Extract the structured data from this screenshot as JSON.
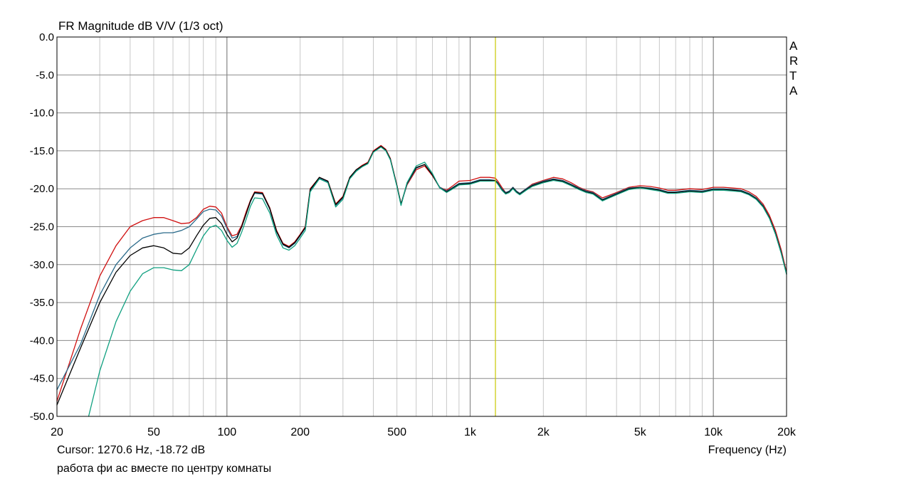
{
  "chart_data": {
    "type": "line",
    "title": "FR Magnitude dB V/V (1/3 oct)",
    "xlabel": "Frequency (Hz)",
    "ylabel": "",
    "x_scale": "log",
    "xlim": [
      20,
      20000
    ],
    "ylim": [
      -50,
      0
    ],
    "x_ticks": [
      20,
      50,
      100,
      200,
      500,
      1000,
      2000,
      5000,
      10000,
      20000
    ],
    "x_tick_labels": [
      "20",
      "50",
      "100",
      "200",
      "500",
      "1k",
      "2k",
      "5k",
      "10k",
      "20k"
    ],
    "y_ticks": [
      0,
      -5,
      -10,
      -15,
      -20,
      -25,
      -30,
      -35,
      -40,
      -45,
      -50
    ],
    "y_tick_labels": [
      "0.0",
      "-5.0",
      "-10.0",
      "-15.0",
      "-20.0",
      "-25.0",
      "-30.0",
      "-35.0",
      "-40.0",
      "-45.0",
      "-50.0"
    ],
    "grid": true,
    "cursor": {
      "frequency": 1270.6,
      "value": -18.72,
      "color": "#c8c800"
    },
    "cursor_label": "Cursor: 1270.6 Hz, -18.72 dB",
    "caption": "работа фи ас вместе по центру комнаты",
    "brand": "ARTA",
    "series": [
      {
        "color": "#d01010",
        "x": [
          20,
          25,
          30,
          35,
          40,
          45,
          50,
          55,
          60,
          65,
          70,
          75,
          80,
          85,
          90,
          95,
          100,
          105,
          110,
          115,
          120,
          125,
          130,
          140,
          150,
          160,
          170,
          180,
          190,
          200,
          210,
          220,
          240,
          260,
          280,
          300,
          320,
          340,
          360,
          380,
          400,
          430,
          450,
          470,
          500,
          520,
          550,
          600,
          650,
          700,
          750,
          800,
          850,
          900,
          1000,
          1100,
          1200,
          1270,
          1300,
          1350,
          1400,
          1450,
          1500,
          1550,
          1600,
          1700,
          1800,
          2000,
          2200,
          2400,
          2600,
          2800,
          3000,
          3200,
          3500,
          4000,
          4500,
          5000,
          5500,
          6000,
          6500,
          7000,
          8000,
          9000,
          10000,
          11000,
          12000,
          13000,
          14000,
          15000,
          16000,
          17000,
          18000,
          19000,
          20000
        ],
        "y": [
          -48.0,
          -38.5,
          -31.5,
          -27.5,
          -25.0,
          -24.2,
          -23.8,
          -23.8,
          -24.2,
          -24.6,
          -24.5,
          -23.8,
          -22.7,
          -22.3,
          -22.4,
          -23.2,
          -25.0,
          -26.2,
          -26.0,
          -24.8,
          -23.0,
          -21.5,
          -20.4,
          -20.5,
          -22.5,
          -25.5,
          -27.2,
          -27.6,
          -27.0,
          -26.0,
          -25.0,
          -20.0,
          -18.5,
          -19.0,
          -22.0,
          -21.0,
          -18.5,
          -17.5,
          -16.9,
          -16.5,
          -15.0,
          -14.3,
          -14.8,
          -16.0,
          -19.5,
          -22.0,
          -19.5,
          -17.5,
          -17.0,
          -18.3,
          -19.8,
          -20.2,
          -19.6,
          -19.0,
          -18.9,
          -18.5,
          -18.5,
          -18.6,
          -19.0,
          -19.8,
          -20.5,
          -20.3,
          -19.8,
          -20.3,
          -20.6,
          -20.0,
          -19.4,
          -18.9,
          -18.5,
          -18.7,
          -19.2,
          -19.8,
          -20.2,
          -20.4,
          -21.2,
          -20.5,
          -19.8,
          -19.6,
          -19.7,
          -19.9,
          -20.2,
          -20.2,
          -20.0,
          -20.1,
          -19.8,
          -19.8,
          -19.9,
          -20.0,
          -20.4,
          -21.0,
          -22.0,
          -23.5,
          -25.5,
          -28.0,
          -31.0
        ]
      },
      {
        "color": "#2a6a8a",
        "x": [
          20,
          25,
          30,
          35,
          40,
          45,
          50,
          55,
          60,
          65,
          70,
          75,
          80,
          85,
          90,
          95,
          100,
          105,
          110,
          115,
          120,
          125,
          130,
          140,
          150,
          160,
          170,
          180,
          190,
          200,
          210,
          220,
          240,
          260,
          280,
          300,
          320,
          340,
          360,
          380,
          400,
          430,
          450,
          470,
          500,
          520,
          550,
          600,
          650,
          700,
          750,
          800,
          850,
          900,
          1000,
          1100,
          1200,
          1270,
          1300,
          1350,
          1400,
          1450,
          1500,
          1550,
          1600,
          1700,
          1800,
          2000,
          2200,
          2400,
          2600,
          2800,
          3000,
          3200,
          3500,
          4000,
          4500,
          5000,
          5500,
          6000,
          6500,
          7000,
          8000,
          9000,
          10000,
          11000,
          12000,
          13000,
          14000,
          15000,
          16000,
          17000,
          18000,
          19000,
          20000
        ],
        "y": [
          -46.5,
          -40.5,
          -34.0,
          -30.0,
          -27.8,
          -26.5,
          -26.0,
          -25.8,
          -25.8,
          -25.5,
          -25.0,
          -24.0,
          -23.0,
          -22.7,
          -22.8,
          -23.6,
          -25.2,
          -26.5,
          -26.3,
          -25.0,
          -23.3,
          -21.7,
          -20.6,
          -20.7,
          -22.7,
          -25.7,
          -27.4,
          -27.8,
          -27.2,
          -26.2,
          -25.2,
          -20.2,
          -18.6,
          -19.1,
          -22.2,
          -21.2,
          -18.6,
          -17.6,
          -17.0,
          -16.6,
          -15.1,
          -14.4,
          -14.9,
          -16.1,
          -19.6,
          -22.1,
          -19.4,
          -17.3,
          -16.8,
          -18.2,
          -19.8,
          -20.3,
          -19.8,
          -19.3,
          -19.2,
          -18.8,
          -18.8,
          -18.9,
          -19.2,
          -20.0,
          -20.5,
          -20.3,
          -19.8,
          -20.3,
          -20.6,
          -20.0,
          -19.5,
          -19.0,
          -18.7,
          -18.9,
          -19.4,
          -19.9,
          -20.3,
          -20.5,
          -21.4,
          -20.6,
          -19.9,
          -19.8,
          -19.9,
          -20.1,
          -20.4,
          -20.4,
          -20.2,
          -20.3,
          -20.0,
          -20.0,
          -20.1,
          -20.2,
          -20.6,
          -21.2,
          -22.2,
          -23.8,
          -25.8,
          -28.3,
          -31.2
        ]
      },
      {
        "color": "#000000",
        "x": [
          20,
          25,
          30,
          35,
          40,
          45,
          50,
          55,
          60,
          65,
          70,
          75,
          80,
          85,
          90,
          95,
          100,
          105,
          110,
          115,
          120,
          125,
          130,
          140,
          150,
          160,
          170,
          180,
          190,
          200,
          210,
          220,
          240,
          260,
          280,
          300,
          320,
          340,
          360,
          380,
          400,
          430,
          450,
          470,
          500,
          520,
          550,
          600,
          650,
          700,
          750,
          800,
          850,
          900,
          1000,
          1100,
          1200,
          1270,
          1300,
          1350,
          1400,
          1450,
          1500,
          1550,
          1600,
          1700,
          1800,
          2000,
          2200,
          2400,
          2600,
          2800,
          3000,
          3200,
          3500,
          4000,
          4500,
          5000,
          5500,
          6000,
          6500,
          7000,
          8000,
          9000,
          10000,
          11000,
          12000,
          13000,
          14000,
          15000,
          16000,
          17000,
          18000,
          19000,
          20000
        ],
        "y": [
          -48.5,
          -41.0,
          -35.0,
          -31.0,
          -28.8,
          -27.8,
          -27.5,
          -27.8,
          -28.5,
          -28.6,
          -27.8,
          -26.2,
          -24.8,
          -23.9,
          -23.8,
          -24.6,
          -26.0,
          -27.0,
          -26.5,
          -25.0,
          -23.3,
          -21.6,
          -20.5,
          -20.6,
          -22.6,
          -25.6,
          -27.3,
          -27.7,
          -27.1,
          -26.1,
          -25.1,
          -20.1,
          -18.5,
          -19.0,
          -22.1,
          -21.1,
          -18.5,
          -17.5,
          -17.0,
          -16.6,
          -15.1,
          -14.4,
          -14.9,
          -16.1,
          -19.6,
          -22.0,
          -19.3,
          -17.2,
          -16.8,
          -18.2,
          -19.9,
          -20.4,
          -19.9,
          -19.4,
          -19.3,
          -18.9,
          -18.9,
          -18.9,
          -19.3,
          -20.1,
          -20.6,
          -20.4,
          -19.9,
          -20.4,
          -20.7,
          -20.1,
          -19.6,
          -19.1,
          -18.8,
          -19.0,
          -19.5,
          -20.0,
          -20.4,
          -20.6,
          -21.5,
          -20.7,
          -20.0,
          -19.8,
          -20.0,
          -20.2,
          -20.5,
          -20.5,
          -20.3,
          -20.4,
          -20.1,
          -20.1,
          -20.2,
          -20.3,
          -20.7,
          -21.3,
          -22.3,
          -23.8,
          -25.9,
          -28.4,
          -31.2
        ]
      },
      {
        "color": "#10a080",
        "x": [
          27,
          30,
          35,
          40,
          45,
          50,
          55,
          60,
          65,
          70,
          75,
          80,
          85,
          90,
          95,
          100,
          105,
          110,
          115,
          120,
          125,
          130,
          140,
          150,
          160,
          170,
          180,
          190,
          200,
          210,
          220,
          240,
          260,
          280,
          300,
          320,
          340,
          360,
          380,
          400,
          430,
          450,
          470,
          500,
          520,
          550,
          600,
          650,
          700,
          750,
          800,
          850,
          900,
          1000,
          1100,
          1200,
          1270,
          1300,
          1350,
          1400,
          1450,
          1500,
          1550,
          1600,
          1700,
          1800,
          2000,
          2200,
          2400,
          2600,
          2800,
          3000,
          3200,
          3500,
          4000,
          4500,
          5000,
          5500,
          6000,
          6500,
          7000,
          8000,
          9000,
          10000,
          11000,
          12000,
          13000,
          14000,
          15000,
          16000,
          17000,
          18000,
          19000,
          20000
        ],
        "y": [
          -50.0,
          -44.0,
          -37.5,
          -33.5,
          -31.2,
          -30.4,
          -30.4,
          -30.7,
          -30.8,
          -30.0,
          -28.0,
          -26.2,
          -25.1,
          -24.8,
          -25.5,
          -26.8,
          -27.7,
          -27.2,
          -25.7,
          -24.0,
          -22.3,
          -21.2,
          -21.3,
          -23.2,
          -26.1,
          -27.8,
          -28.1,
          -27.5,
          -26.5,
          -25.5,
          -20.4,
          -18.7,
          -19.2,
          -22.4,
          -21.4,
          -18.7,
          -17.7,
          -17.1,
          -16.7,
          -15.2,
          -14.5,
          -15.0,
          -16.2,
          -19.7,
          -22.2,
          -19.2,
          -17.0,
          -16.5,
          -18.0,
          -19.9,
          -20.5,
          -20.0,
          -19.5,
          -19.4,
          -19.0,
          -19.0,
          -19.0,
          -19.4,
          -20.2,
          -20.7,
          -20.5,
          -20.0,
          -20.5,
          -20.8,
          -20.2,
          -19.7,
          -19.2,
          -18.9,
          -19.1,
          -19.6,
          -20.1,
          -20.5,
          -20.7,
          -21.6,
          -20.8,
          -20.1,
          -19.9,
          -20.1,
          -20.3,
          -20.6,
          -20.6,
          -20.4,
          -20.5,
          -20.2,
          -20.2,
          -20.3,
          -20.4,
          -20.8,
          -21.4,
          -22.4,
          -23.9,
          -26.0,
          -28.5,
          -31.3
        ]
      }
    ]
  }
}
